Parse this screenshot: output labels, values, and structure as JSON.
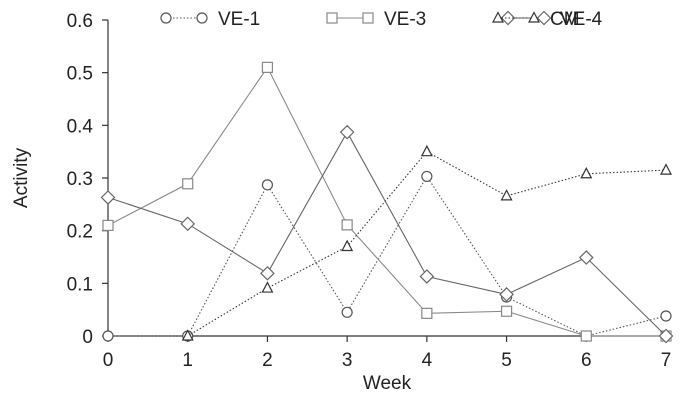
{
  "chart_data": {
    "type": "line",
    "xlabel": "Week",
    "ylabel": "Activity",
    "xlim": [
      0,
      7
    ],
    "ylim": [
      0,
      0.6
    ],
    "x_ticks": [
      "0",
      "1",
      "2",
      "3",
      "4",
      "5",
      "6",
      "7"
    ],
    "y_ticks": [
      "0",
      "0.1",
      "0.2",
      "0.3",
      "0.4",
      "0.5",
      "0.6"
    ],
    "grid": false,
    "legend_position": "top",
    "series": [
      {
        "name": "VE-1",
        "marker": "circle",
        "line": "dotted",
        "color": "#555555",
        "x": [
          0,
          1,
          2,
          3,
          4,
          5,
          6,
          7
        ],
        "y": [
          0,
          0,
          0.287,
          0.045,
          0.303,
          0.074,
          0,
          0.038
        ]
      },
      {
        "name": "VE-3",
        "marker": "square",
        "line": "solid",
        "color": "#888888",
        "x": [
          0,
          1,
          2,
          3,
          4,
          5,
          6,
          7
        ],
        "y": [
          0.21,
          0.289,
          0.51,
          0.211,
          0.043,
          0.047,
          0,
          0
        ]
      },
      {
        "name": "VE-4",
        "marker": "diamond",
        "line": "solid",
        "color": "#666666",
        "x": [
          0,
          1,
          2,
          3,
          4,
          5,
          6,
          7
        ],
        "y": [
          0.263,
          0.213,
          0.119,
          0.387,
          0.113,
          0.079,
          0.149,
          0
        ]
      },
      {
        "name": "CM",
        "marker": "triangle",
        "line": "dotted",
        "color": "#333333",
        "x": [
          1,
          2,
          3,
          4,
          5,
          6,
          7
        ],
        "y": [
          0,
          0.091,
          0.17,
          0.35,
          0.266,
          0.308,
          0.315
        ]
      }
    ]
  }
}
